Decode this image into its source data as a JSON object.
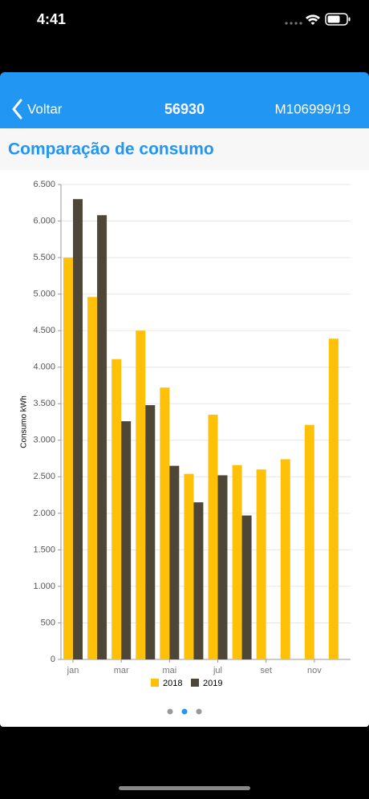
{
  "status_bar": {
    "time": "4:41"
  },
  "nav": {
    "back": "Voltar",
    "title": "56930",
    "right": "M106999/19"
  },
  "header": {
    "title": "Comparação de consumo"
  },
  "chart_data": {
    "type": "bar",
    "ylabel": "Consumo kWh",
    "categories": [
      "jan",
      null,
      "mar",
      null,
      "mai",
      null,
      "jul",
      null,
      "set",
      null,
      "nov",
      null
    ],
    "series": [
      {
        "name": "2018",
        "color": "#ffc107",
        "values": [
          5500,
          4960,
          4110,
          4500,
          3720,
          2540,
          3350,
          2660,
          2600,
          2740,
          3210,
          4390
        ]
      },
      {
        "name": "2019",
        "color": "#4e4636",
        "values": [
          6300,
          6080,
          3260,
          3480,
          2650,
          2150,
          2520,
          1970,
          null,
          null,
          null,
          null
        ]
      }
    ],
    "ylim": [
      0,
      6500
    ],
    "yticks": [
      0,
      500,
      {
        "value": 1000,
        "label": "1.000"
      },
      {
        "value": 1500,
        "label": "1.500"
      },
      {
        "value": 2000,
        "label": "2.000"
      },
      {
        "value": 2500,
        "label": "2.500"
      },
      {
        "value": 3000,
        "label": "3.000"
      },
      {
        "value": 3500,
        "label": "3.500"
      },
      {
        "value": 4000,
        "label": "4.000"
      },
      {
        "value": 4500,
        "label": "4.500"
      },
      {
        "value": 5000,
        "label": "5.000"
      },
      {
        "value": 5500,
        "label": "5.500"
      },
      {
        "value": 6000,
        "label": "6.000"
      },
      {
        "value": 6500,
        "label": "6.500"
      }
    ],
    "grid": true,
    "legend": "bottom"
  }
}
